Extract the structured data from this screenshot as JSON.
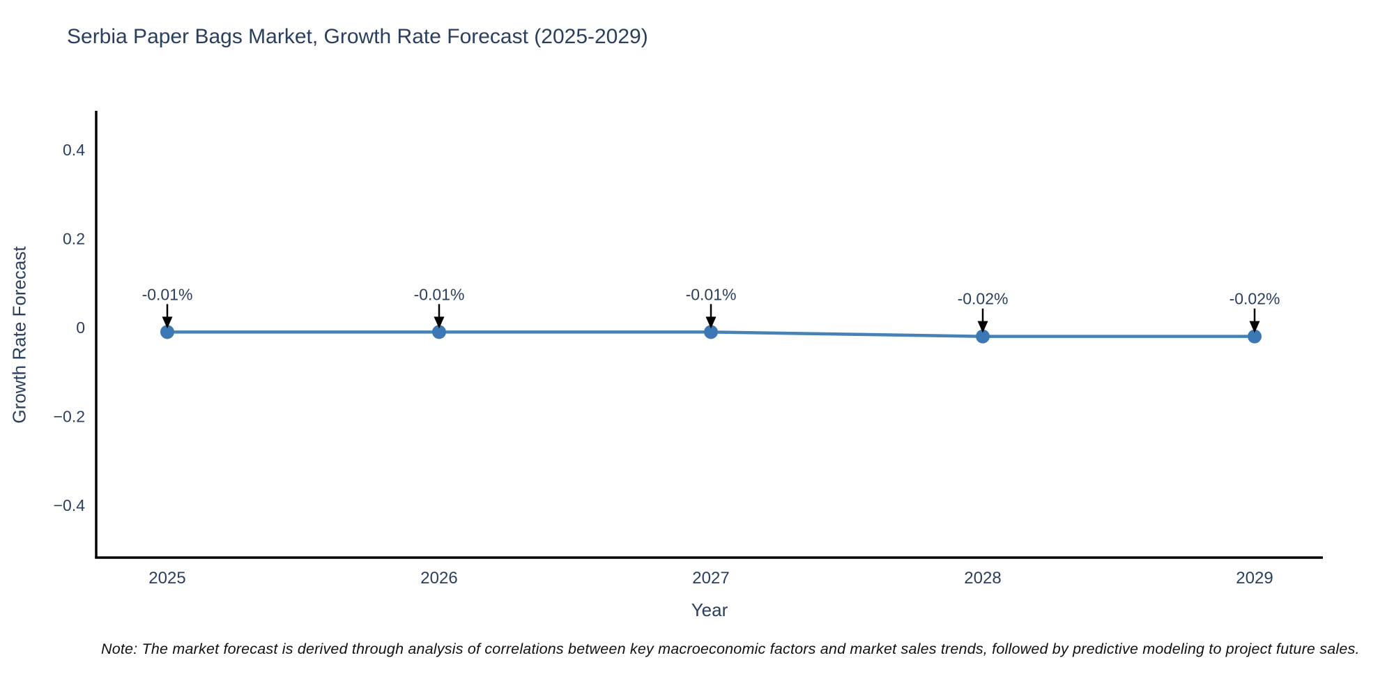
{
  "chart_data": {
    "type": "line",
    "title": "Serbia Paper Bags Market, Growth Rate Forecast (2025-2029)",
    "xlabel": "Year",
    "ylabel": "Growth Rate Forecast",
    "categories": [
      "2025",
      "2026",
      "2027",
      "2028",
      "2029"
    ],
    "series": [
      {
        "name": "Growth Rate Forecast",
        "values": [
          -0.01,
          -0.01,
          -0.01,
          -0.02,
          -0.02
        ]
      }
    ],
    "point_labels": [
      "-0.01%",
      "-0.01%",
      "-0.01%",
      "-0.02%",
      "-0.02%"
    ],
    "ytick_labels": [
      "0.4",
      "0.2",
      "0",
      "−0.2",
      "−0.4"
    ],
    "ytick_values": [
      0.4,
      0.2,
      0,
      -0.2,
      -0.4
    ],
    "ylim": [
      -0.518,
      0.488
    ],
    "grid": false,
    "legend": "none",
    "colors": {
      "line": "#4682b4",
      "marker": "#3c79b4",
      "axis": "#000000",
      "text": "#2a3f5f",
      "note_text": "#111111",
      "arrow": "#000000"
    },
    "note": "Note: The market forecast is derived through analysis of correlations between key macroeconomic factors and market sales trends, followed by predictive modeling to project future sales."
  }
}
